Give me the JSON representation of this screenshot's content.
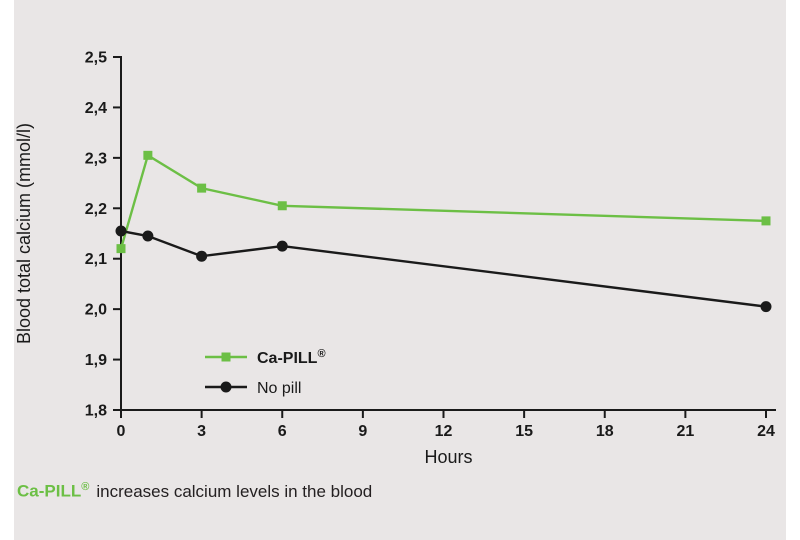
{
  "panel": {
    "background": "#e9e6e6",
    "page_background": "#ffffff"
  },
  "chart_data": {
    "type": "line",
    "title": "",
    "xlabel": "Hours",
    "ylabel": "Blood total calcium (mmol/l)",
    "xlim": [
      0,
      24
    ],
    "ylim": [
      1.8,
      2.5
    ],
    "xticks": [
      0,
      3,
      6,
      9,
      12,
      15,
      18,
      21,
      24
    ],
    "ytick_values": [
      1.8,
      1.9,
      2.0,
      2.1,
      2.2,
      2.3,
      2.4,
      2.5
    ],
    "ytick_labels": [
      "1,8",
      "1,9",
      "2,0",
      "2,1",
      "2,2",
      "2,3",
      "2,4",
      "2,5"
    ],
    "grid": false,
    "legend_position": "inside-lower-left",
    "axis_color": "#1a1a1a",
    "x": [
      0,
      1,
      3,
      6,
      24
    ],
    "series": [
      {
        "name": "Ca-PILL®",
        "color": "#6cbf45",
        "marker": "square",
        "values": [
          2.12,
          2.305,
          2.24,
          2.205,
          2.175
        ]
      },
      {
        "name": "No pill",
        "color": "#1a1a1a",
        "marker": "circle",
        "values": [
          2.155,
          2.145,
          2.105,
          2.125,
          2.005
        ]
      }
    ]
  },
  "caption": {
    "brand": "Ca-PILL",
    "registered": "®",
    "text": "increases calcium levels in the blood",
    "brand_color": "#6cbf45"
  }
}
